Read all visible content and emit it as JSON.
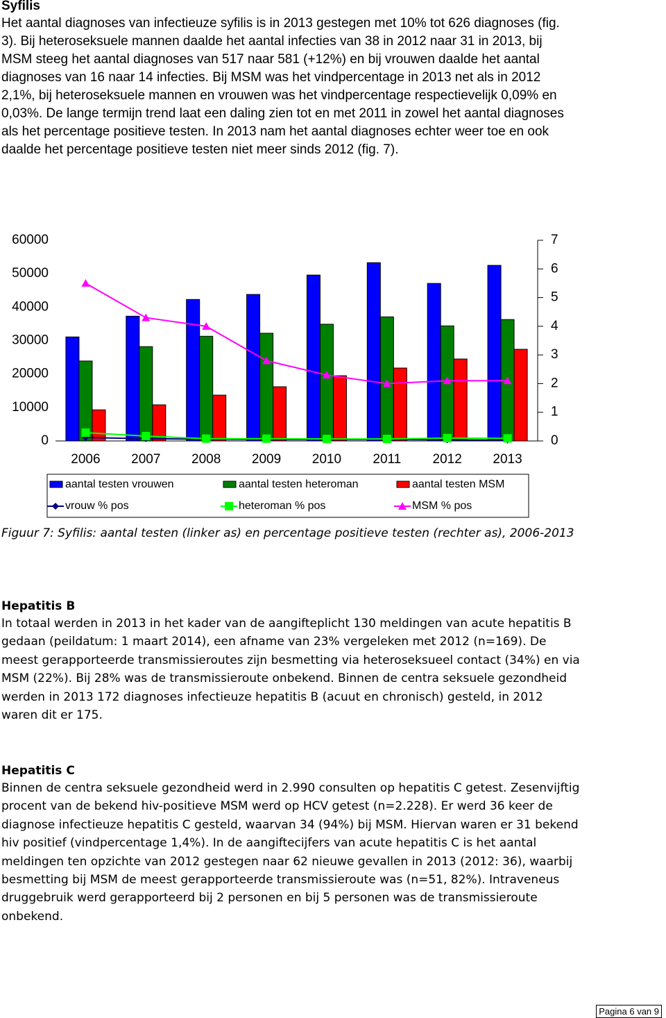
{
  "syfilis": {
    "title": "Syfilis",
    "text": "Het aantal diagnoses van infectieuze syfilis is in 2013 gestegen met 10% tot 626 diagnoses (fig. 3). Bij heteroseksuele mannen daalde het aantal infecties van 38 in 2012 naar 31 in 2013, bij MSM steeg het aantal diagnoses van 517 naar 581 (+12%) en bij vrouwen daalde het aantal diagnoses van 16 naar 14 infecties. Bij MSM was het vindpercentage in 2013 net als in 2012 2,1%, bij heteroseksuele mannen en vrouwen was het vindpercentage respectievelijk 0,09% en 0,03%. De lange termijn trend laat een daling zien tot en met 2011 in zowel het aantal diagnoses als het percentage positieve testen. In 2013 nam het aantal diagnoses echter weer toe en ook daalde het percentage positieve testen niet meer sinds 2012 (fig. 7)."
  },
  "chart_data": {
    "type": "combo",
    "categories": [
      "2006",
      "2007",
      "2008",
      "2009",
      "2010",
      "2011",
      "2012",
      "2013"
    ],
    "ylim": [
      0,
      60000
    ],
    "yticks": [
      0,
      10000,
      20000,
      30000,
      40000,
      50000,
      60000
    ],
    "y2lim": [
      0,
      7
    ],
    "y2ticks": [
      0,
      1,
      2,
      3,
      4,
      5,
      6,
      7
    ],
    "series": [
      {
        "name": "aantal testen vrouwen",
        "type": "bar",
        "color": "#0000ff",
        "values": [
          31100,
          37300,
          42300,
          43800,
          49600,
          53300,
          47100,
          52500
        ]
      },
      {
        "name": "aantal testen heteroman",
        "type": "bar",
        "color": "#008000",
        "values": [
          23900,
          28200,
          31300,
          32200,
          34900,
          37100,
          34400,
          36300
        ]
      },
      {
        "name": "aantal testen MSM",
        "type": "bar",
        "color": "#ff0000",
        "values": [
          9300,
          10800,
          13700,
          16200,
          19500,
          21800,
          24500,
          27400
        ]
      },
      {
        "name": "vrouw % pos",
        "type": "line",
        "axis": "y2",
        "marker": "diamond",
        "color": "#000080",
        "values": [
          0.12,
          0.08,
          0.06,
          0.05,
          0.05,
          0.05,
          0.04,
          0.03
        ]
      },
      {
        "name": "heteroman % pos",
        "type": "line",
        "axis": "y2",
        "marker": "square",
        "color": "#00ff00",
        "values": [
          0.29,
          0.17,
          0.08,
          0.08,
          0.07,
          0.07,
          0.1,
          0.09
        ]
      },
      {
        "name": "MSM % pos",
        "type": "line",
        "axis": "y2",
        "marker": "triangle",
        "color": "#ff00ff",
        "values": [
          5.5,
          4.3,
          4.0,
          2.8,
          2.3,
          2.0,
          2.1,
          2.1
        ]
      }
    ]
  },
  "figure_caption": "Figuur 7: Syfilis: aantal testen (linker as) en percentage positieve testen (rechter as), 2006-2013",
  "hepatitis_b": {
    "title": "Hepatitis B",
    "text": "In totaal werden in 2013 in het kader van de aangifteplicht 130 meldingen van acute hepatitis B gedaan (peildatum: 1 maart 2014), een afname van 23% vergeleken met 2012 (n=169). De meest gerapporteerde transmissieroutes zijn besmetting via heteroseksueel contact (34%) en via MSM (22%). Bij 28% was de transmissieroute onbekend. Binnen de centra seksuele gezondheid werden in 2013 172 diagnoses infectieuze hepatitis B (acuut en chronisch) gesteld, in 2012 waren dit er 175."
  },
  "hepatitis_c": {
    "title": "Hepatitis C",
    "text": "Binnen de centra seksuele gezondheid werd in 2.990 consulten op hepatitis C getest. Zesenvijftig procent van de bekend hiv-positieve MSM werd op HCV getest (n=2.228). Er werd 36 keer de diagnose infectieuze hepatitis C gesteld, waarvan 34 (94%) bij MSM. Hiervan waren er 31 bekend hiv positief (vindpercentage 1,4%). In de aangiftecijfers van acute hepatitis C is het aantal meldingen ten opzichte van 2012 gestegen naar 62 nieuwe gevallen in 2013 (2012: 36), waarbij besmetting bij MSM de meest gerapporteerde transmissieroute was (n=51, 82%). Intraveneus druggebruik werd gerapporteerd bij 2 personen en bij 5 personen was de transmissieroute onbekend."
  },
  "footer": "Pagina 6 van 9"
}
